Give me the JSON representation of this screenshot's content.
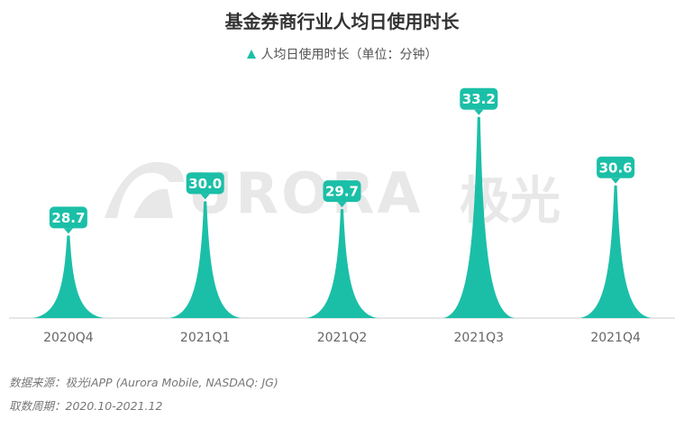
{
  "chart_data": {
    "type": "bar",
    "title": "基金券商行业人均日使用时长",
    "legend": {
      "label": "人均日使用时长（单位：分钟）",
      "position": "top"
    },
    "categories": [
      "2020Q4",
      "2021Q1",
      "2021Q2",
      "2021Q3",
      "2021Q4"
    ],
    "values": [
      28.7,
      30.0,
      29.7,
      33.2,
      30.6
    ],
    "value_labels": [
      "28.7",
      "30.0",
      "29.7",
      "33.2",
      "30.6"
    ],
    "ylim": [
      25.5,
      33.6
    ],
    "grid": false,
    "color": "#1BBFA7"
  },
  "watermark": {
    "text": "URORA",
    "text_cn": "极光"
  },
  "footer": {
    "source": "数据来源：极光iAPP (Aurora Mobile, NASDAQ: JG)",
    "period": "取数周期：2020.10-2021.12"
  }
}
